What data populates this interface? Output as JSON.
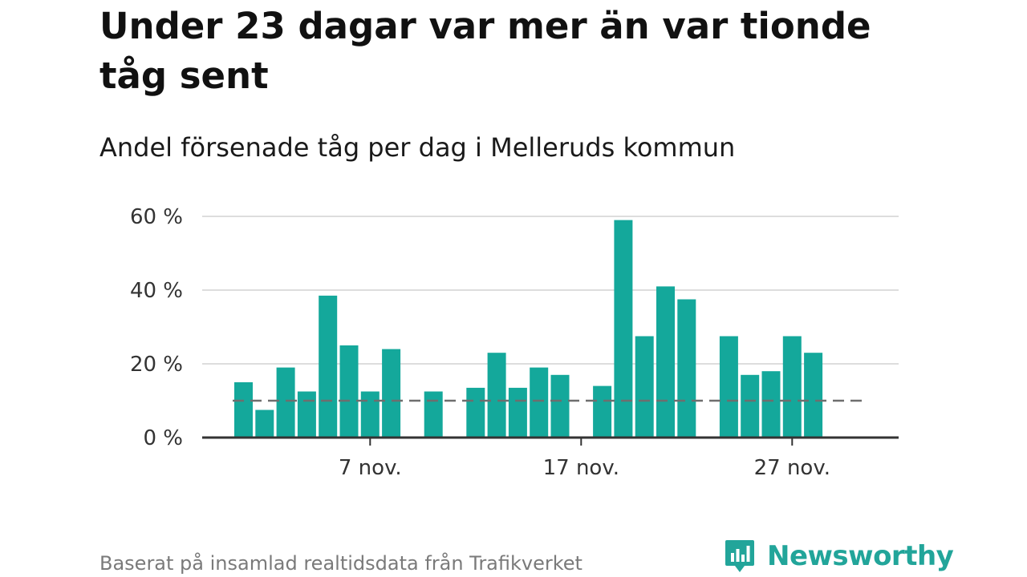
{
  "title": "Under 23 dagar var mer än var tionde tåg sent",
  "subtitle": "Andel försenade tåg per dag i Melleruds kommun",
  "source": "Baserat på insamlad realtidsdata från Trafikverket",
  "brand": {
    "name": "Newsworthy",
    "icon": "newsworthy-chart-logo-icon"
  },
  "colors": {
    "bar": "#14a89b",
    "reference": "#6e6e6e",
    "grid": "#dddddd",
    "axis": "#333333",
    "brand": "#22a59a"
  },
  "chart_data": {
    "type": "bar",
    "title": "Under 23 dagar var mer än var tionde tåg sent",
    "subtitle": "Andel försenade tåg per dag i Melleruds kommun",
    "x": [
      "1 nov.",
      "2 nov.",
      "3 nov.",
      "4 nov.",
      "5 nov.",
      "6 nov.",
      "7 nov.",
      "8 nov.",
      "9 nov.",
      "10 nov.",
      "11 nov.",
      "12 nov.",
      "13 nov.",
      "14 nov.",
      "15 nov.",
      "16 nov.",
      "17 nov.",
      "18 nov.",
      "19 nov.",
      "20 nov.",
      "21 nov.",
      "22 nov.",
      "23 nov.",
      "24 nov.",
      "25 nov.",
      "26 nov.",
      "27 nov.",
      "28 nov.",
      "29 nov.",
      "30 nov."
    ],
    "values": [
      15,
      7.5,
      19,
      12.5,
      38.5,
      25,
      12.5,
      24,
      null,
      12.5,
      null,
      13.5,
      23,
      13.5,
      19,
      17,
      null,
      14,
      59,
      27.5,
      41,
      37.5,
      null,
      27.5,
      17,
      18,
      27.5,
      23,
      null,
      null
    ],
    "reference_line": {
      "value": 10
    },
    "xticks": [
      {
        "value": "7 nov.",
        "label": "7 nov."
      },
      {
        "value": "17 nov.",
        "label": "17 nov."
      },
      {
        "value": "27 nov.",
        "label": "27 nov."
      }
    ],
    "ylim": [
      0,
      60
    ],
    "yticks": [
      0,
      20,
      40,
      60
    ],
    "ytick_labels": [
      "0 %",
      "20 %",
      "40 %",
      "60 %"
    ],
    "grid": true,
    "legend": "none"
  }
}
